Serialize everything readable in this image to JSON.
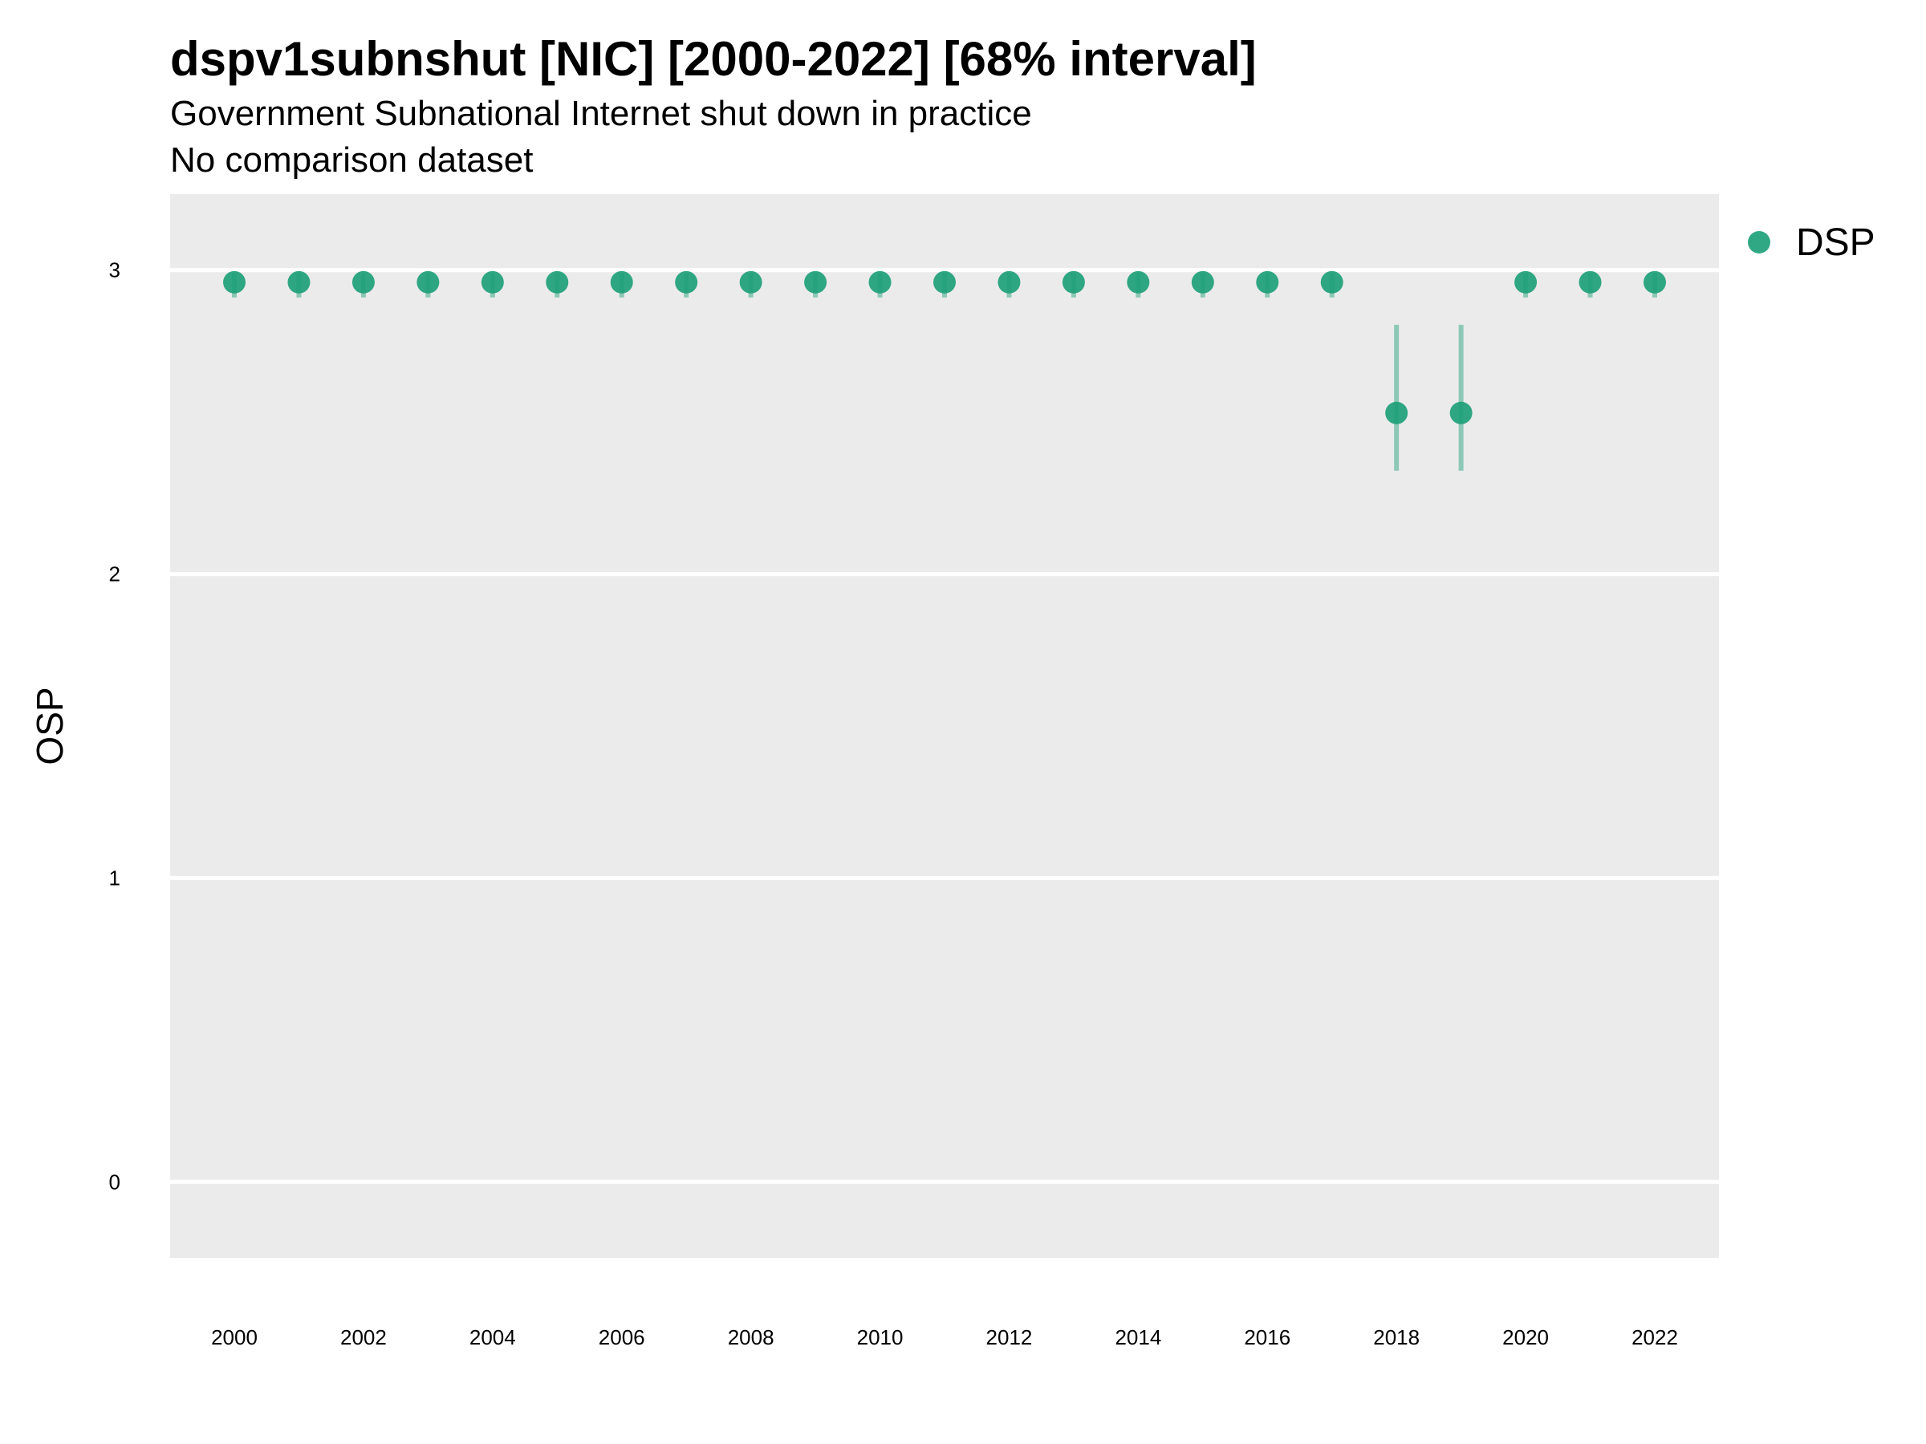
{
  "chart_data": {
    "type": "scatter",
    "title": "dspv1subnshut [NIC] [2000-2022] [68% interval]",
    "subtitle": "Government Subnational Internet shut down in practice",
    "caption": "No comparison dataset",
    "xlabel": "",
    "ylabel": "OSP",
    "xlim": [
      1999,
      2023
    ],
    "ylim": [
      -0.25,
      3.25
    ],
    "y_ticks": [
      0,
      1,
      2,
      3
    ],
    "x_ticks": [
      2000,
      2002,
      2004,
      2006,
      2008,
      2010,
      2012,
      2014,
      2016,
      2018,
      2020,
      2022
    ],
    "grid": true,
    "legend_position": "top-right",
    "colors": {
      "series": "#1b9e77",
      "panel": "#ebebeb",
      "grid": "#ffffff"
    },
    "series": [
      {
        "name": "DSP",
        "x": [
          2000,
          2001,
          2002,
          2003,
          2004,
          2005,
          2006,
          2007,
          2008,
          2009,
          2010,
          2011,
          2012,
          2013,
          2014,
          2015,
          2016,
          2017,
          2018,
          2019,
          2020,
          2021,
          2022
        ],
        "y": [
          2.96,
          2.96,
          2.96,
          2.96,
          2.96,
          2.96,
          2.96,
          2.96,
          2.96,
          2.96,
          2.96,
          2.96,
          2.96,
          2.96,
          2.96,
          2.96,
          2.96,
          2.96,
          2.53,
          2.53,
          2.96,
          2.96,
          2.96
        ],
        "lower": [
          2.91,
          2.91,
          2.91,
          2.91,
          2.91,
          2.91,
          2.91,
          2.91,
          2.91,
          2.91,
          2.91,
          2.91,
          2.91,
          2.91,
          2.91,
          2.91,
          2.91,
          2.91,
          2.34,
          2.34,
          2.91,
          2.91,
          2.91
        ],
        "upper": [
          2.99,
          2.99,
          2.99,
          2.99,
          2.99,
          2.99,
          2.99,
          2.99,
          2.99,
          2.99,
          2.99,
          2.99,
          2.99,
          2.99,
          2.99,
          2.99,
          2.99,
          2.99,
          2.82,
          2.82,
          2.99,
          2.99,
          2.99
        ]
      }
    ]
  }
}
